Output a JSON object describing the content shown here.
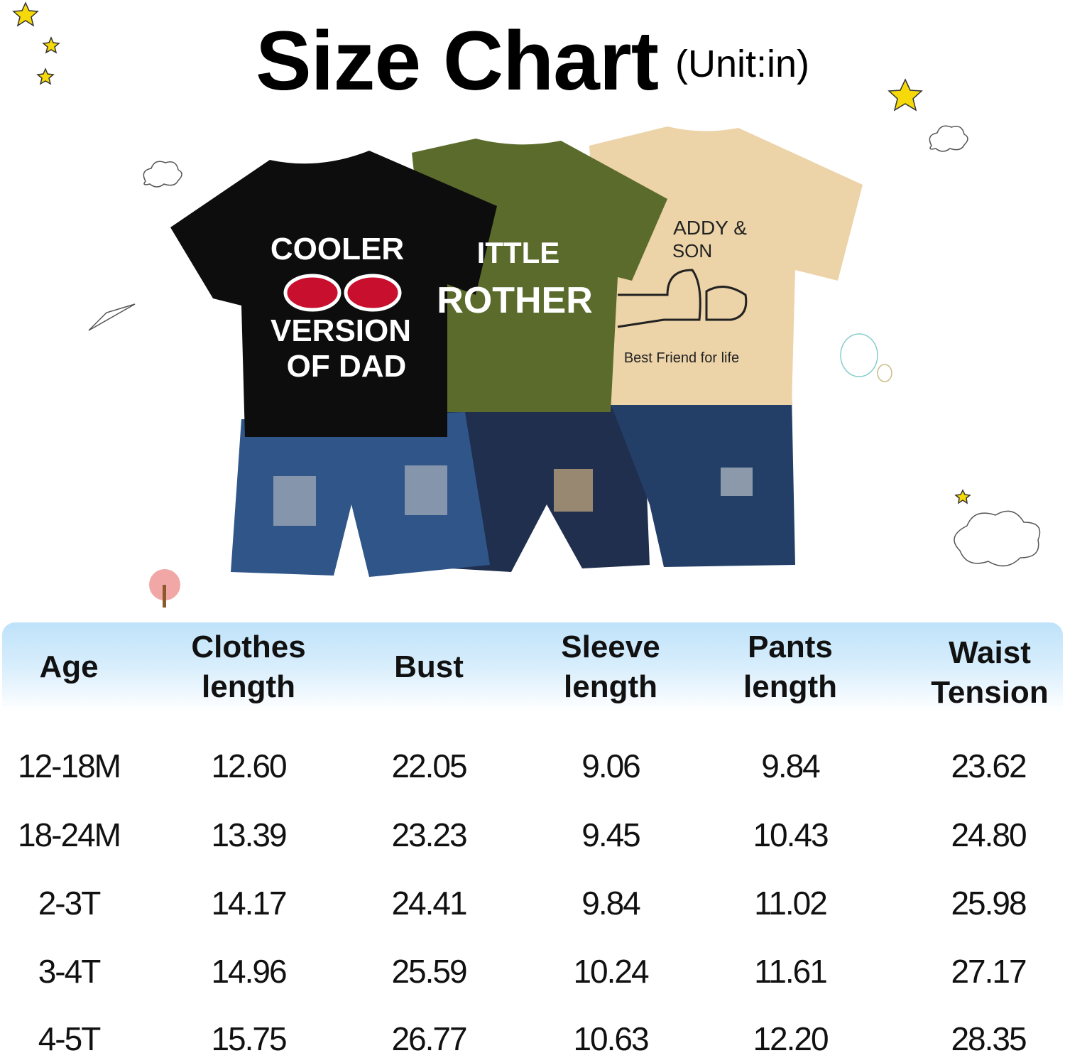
{
  "title": {
    "main": "Size Chart",
    "unit": "(Unit:in)"
  },
  "product_image": {
    "shirt_black_text": [
      "COOLER",
      "VERSION",
      "OF DAD"
    ],
    "shirt_green_text": [
      "ITTLE",
      "ROTHER"
    ],
    "shirt_beige_text": [
      "ADDY &",
      "SON",
      "Best Friend for life"
    ],
    "colors": {
      "black_shirt": "#0d0d0d",
      "green_shirt": "#5b6b2c",
      "beige_shirt": "#ecd3a8",
      "denim": "#2b4a7a"
    }
  },
  "table": {
    "header_color": "#bfe2fa",
    "columns": [
      "Age",
      "Clothes length",
      "Bust",
      "Sleeve length",
      "Pants length",
      "Waist Tension"
    ],
    "rows": [
      [
        "12-18M",
        "12.60",
        "22.05",
        "9.06",
        "9.84",
        "23.62"
      ],
      [
        "18-24M",
        "13.39",
        "23.23",
        "9.45",
        "10.43",
        "24.80"
      ],
      [
        "2-3T",
        "14.17",
        "24.41",
        "9.84",
        "11.02",
        "25.98"
      ],
      [
        "3-4T",
        "14.96",
        "25.59",
        "10.24",
        "11.61",
        "27.17"
      ],
      [
        "4-5T",
        "15.75",
        "26.77",
        "10.63",
        "12.20",
        "28.35"
      ]
    ]
  }
}
